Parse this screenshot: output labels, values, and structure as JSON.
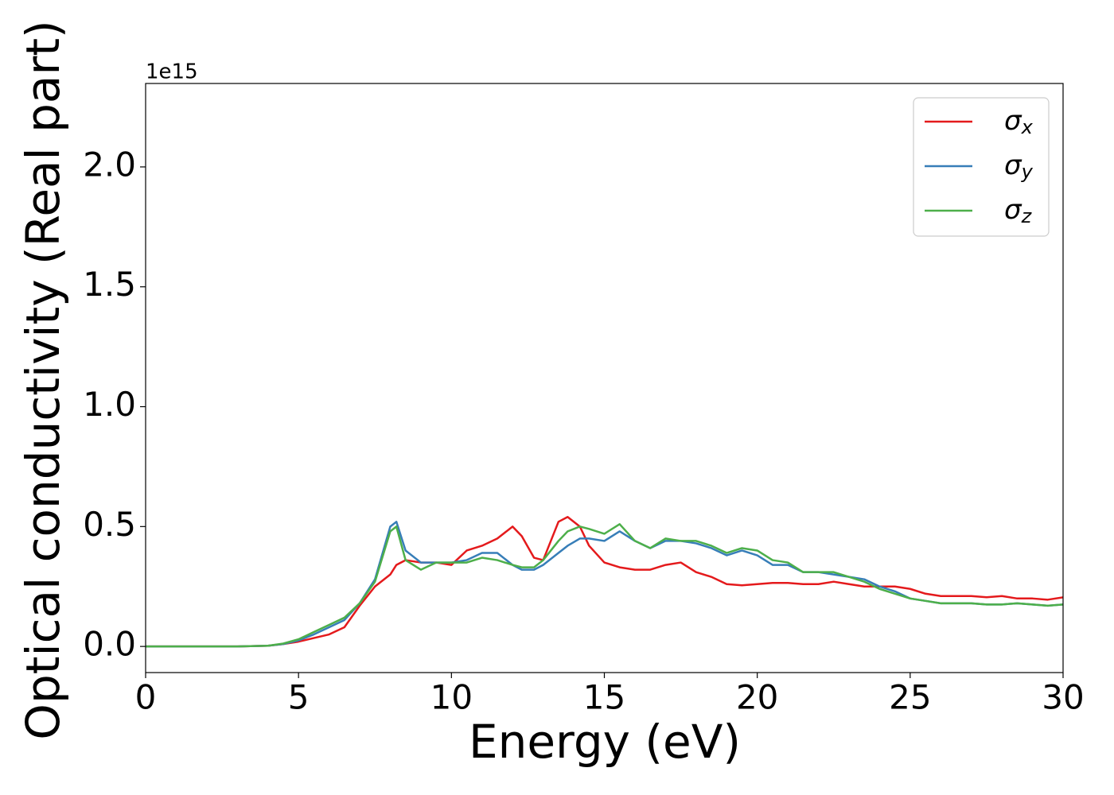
{
  "chart_data": {
    "type": "line",
    "x_label": "Energy (eV)",
    "y_label": "Optical conductivity (Real part)",
    "y_offset_label": "1e15",
    "x": [
      0,
      1,
      2,
      3,
      4,
      4.5,
      5,
      5.5,
      6,
      6.5,
      7,
      7.5,
      8,
      8.2,
      8.5,
      9,
      9.5,
      10,
      10.5,
      11,
      11.5,
      12,
      12.3,
      12.7,
      13,
      13.5,
      13.8,
      14.2,
      14.5,
      15,
      15.5,
      16,
      16.5,
      17,
      17.5,
      18,
      18.5,
      19,
      19.5,
      20,
      20.5,
      21,
      21.5,
      22,
      22.5,
      23,
      23.5,
      24,
      24.5,
      25,
      25.5,
      26,
      26.5,
      27,
      27.5,
      28,
      28.5,
      29,
      29.5,
      30
    ],
    "series": [
      {
        "name": "σx",
        "color": "#e41a1c",
        "values": [
          0,
          0,
          0,
          0,
          0.003,
          0.01,
          0.02,
          0.035,
          0.05,
          0.08,
          0.17,
          0.25,
          0.3,
          0.34,
          0.36,
          0.35,
          0.35,
          0.34,
          0.4,
          0.42,
          0.45,
          0.5,
          0.46,
          0.37,
          0.36,
          0.52,
          0.54,
          0.5,
          0.42,
          0.35,
          0.33,
          0.32,
          0.32,
          0.34,
          0.35,
          0.31,
          0.29,
          0.26,
          0.255,
          0.26,
          0.265,
          0.265,
          0.26,
          0.26,
          0.27,
          0.26,
          0.25,
          0.25,
          0.25,
          0.24,
          0.22,
          0.21,
          0.21,
          0.21,
          0.205,
          0.21,
          0.2,
          0.2,
          0.195,
          0.205
        ]
      },
      {
        "name": "σy",
        "color": "#377eb8",
        "values": [
          0,
          0,
          0,
          0,
          0.003,
          0.01,
          0.025,
          0.05,
          0.08,
          0.11,
          0.18,
          0.28,
          0.5,
          0.52,
          0.4,
          0.35,
          0.35,
          0.35,
          0.36,
          0.39,
          0.39,
          0.34,
          0.32,
          0.32,
          0.34,
          0.39,
          0.42,
          0.45,
          0.45,
          0.44,
          0.48,
          0.44,
          0.41,
          0.44,
          0.44,
          0.43,
          0.41,
          0.38,
          0.4,
          0.38,
          0.34,
          0.34,
          0.31,
          0.31,
          0.3,
          0.29,
          0.28,
          0.25,
          0.23,
          0.2,
          0.19,
          0.18,
          0.18,
          0.18,
          0.175,
          0.175,
          0.18,
          0.175,
          0.17,
          0.175
        ]
      },
      {
        "name": "σz",
        "color": "#4daf4a",
        "values": [
          0,
          0,
          0,
          0,
          0.003,
          0.012,
          0.03,
          0.06,
          0.09,
          0.12,
          0.18,
          0.27,
          0.48,
          0.5,
          0.36,
          0.32,
          0.35,
          0.35,
          0.35,
          0.37,
          0.36,
          0.34,
          0.33,
          0.33,
          0.36,
          0.44,
          0.48,
          0.5,
          0.49,
          0.47,
          0.51,
          0.44,
          0.41,
          0.45,
          0.44,
          0.44,
          0.42,
          0.39,
          0.41,
          0.4,
          0.36,
          0.35,
          0.31,
          0.31,
          0.31,
          0.29,
          0.27,
          0.24,
          0.22,
          0.2,
          0.19,
          0.18,
          0.18,
          0.18,
          0.175,
          0.175,
          0.18,
          0.175,
          0.17,
          0.175
        ]
      }
    ],
    "xlim": [
      0,
      30
    ],
    "xticks": [
      0,
      5,
      10,
      15,
      20,
      25,
      30
    ],
    "ylim": [
      -0.109,
      2.348
    ],
    "yticks": [
      {
        "value": 0,
        "label": "0.0"
      },
      {
        "value": 0.5,
        "label": "0.5"
      },
      {
        "value": 1,
        "label": "1.0"
      },
      {
        "value": 1.5,
        "label": "1.5"
      },
      {
        "value": 2,
        "label": "2.0"
      }
    ],
    "grid": false,
    "legend": "upper right"
  }
}
